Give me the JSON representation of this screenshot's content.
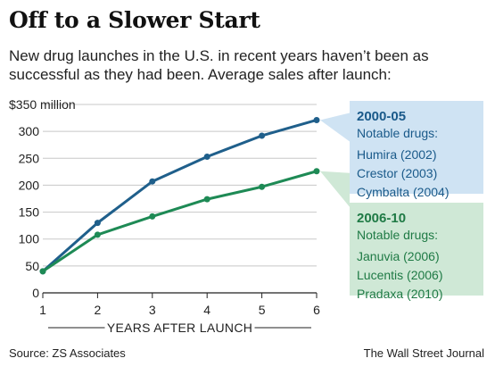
{
  "header": {
    "title": "Off to a Slower Start",
    "subtitle": "New drug launches in the U.S. in recent years haven’t been as successful as they had been. Average sales after launch:"
  },
  "footer": {
    "source": "Source: ZS Associates",
    "credit": "The Wall Street Journal"
  },
  "colors": {
    "series_2000_05": "#1f5f8b",
    "series_2006_10": "#1e8a55",
    "legend_2000_05_bg": "#cfe3f3",
    "legend_2006_10_bg": "#cfe8d6",
    "grid": "#c8c8c8"
  },
  "chart_data": {
    "type": "line",
    "x": [
      1,
      2,
      3,
      4,
      5,
      6
    ],
    "xlabel": "YEARS AFTER LAUNCH",
    "ylabel": "",
    "xlim": [
      1,
      6
    ],
    "ylim": [
      0,
      350
    ],
    "yticks": [
      0,
      50,
      100,
      150,
      200,
      250,
      300,
      350
    ],
    "ytick_labels": [
      "0",
      "50",
      "100",
      "150",
      "200",
      "250",
      "300",
      "$350 million"
    ],
    "grid": true,
    "series": [
      {
        "name": "2000-05",
        "values": [
          40,
          130,
          207,
          253,
          292,
          321
        ]
      },
      {
        "name": "2006-10",
        "values": [
          40,
          108,
          142,
          174,
          197,
          226
        ]
      }
    ],
    "legend": [
      {
        "title": "2000-05",
        "subtitle": "Notable drugs:",
        "items": [
          "Humira (2002)",
          "Crestor (2003)",
          "Cymbalta (2004)"
        ]
      },
      {
        "title": "2006-10",
        "subtitle": "Notable drugs:",
        "items": [
          "Januvia (2006)",
          "Lucentis (2006)",
          "Pradaxa (2010)"
        ]
      }
    ],
    "legend_placement": "right"
  }
}
